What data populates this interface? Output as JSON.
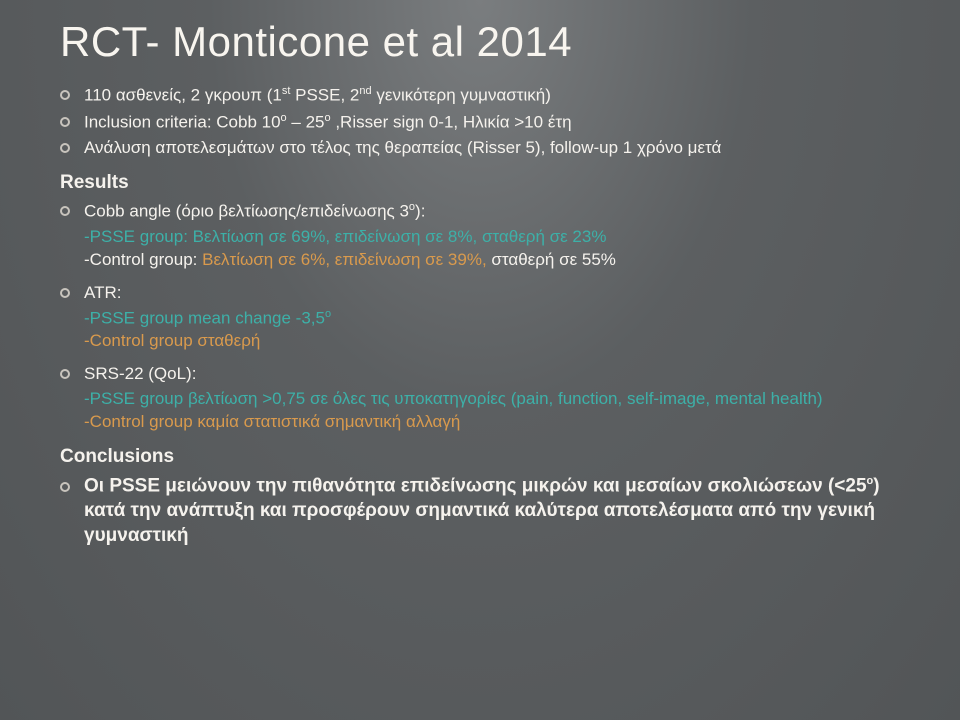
{
  "title": "RCT- Monticone et al 2014",
  "bullets_top": [
    "110 ασθενείς, 2 γκρουπ (1<sup>st</sup> PSSE, 2<sup>nd</sup> γενικότερη γυμναστική)",
    "Inclusion criteria: Cobb 10<sup>ο</sup> – 25<sup>ο</sup> ,Risser sign 0-1, Ηλικία >10 έτη",
    "Ανάλυση αποτελεσμάτων στο τέλος της θεραπείας (Risser 5), follow-up 1 χρόνο μετά"
  ],
  "results_heading": "Results",
  "cobb_bullet": "Cobb angle (όριο βελτίωσης/επιδείνωσης 3<sup>ο</sup>):",
  "cobb_psse": "-PSSE group: Βελτίωση σε 69%, επιδείνωση σε 8%, σταθερή σε 23%",
  "cobb_control_a": "-Control group: ",
  "cobb_control_b": "Βελτίωση σε 6%, επιδείνωση σε 39%,",
  "cobb_control_c": " σταθερή σε 55%",
  "atr_bullet": "ATR:",
  "atr_psse": "-PSSE group mean change -3,5<sup>ο</sup>",
  "atr_control": "-Control group σταθερή",
  "srs_bullet": "SRS-22 (QoL):",
  "srs_psse_a": "-PSSE group βελτίωση >0,75 σε όλες τις υποκατηγορίες (pain, function, self-image, mental health)",
  "srs_control": "-Control group καμία στατιστικά σημαντική αλλαγή",
  "conclusions_heading": "Conclusions",
  "conclusion_text": "Οι PSSE μειώνουν την πιθανότητα επιδείνωσης μικρών και μεσαίων σκολιώσεων (<25<sup>ο</sup>) κατά την ανάπτυξη και προσφέρουν σημαντικά καλύτερα αποτελέσματα από την γενική γυμναστική",
  "colors": {
    "background": "#5c5f61",
    "text": "#f5f2ed",
    "teal": "#3db0a8",
    "orange": "#d99a4d",
    "bullet_ring": "#c8c4bd"
  }
}
